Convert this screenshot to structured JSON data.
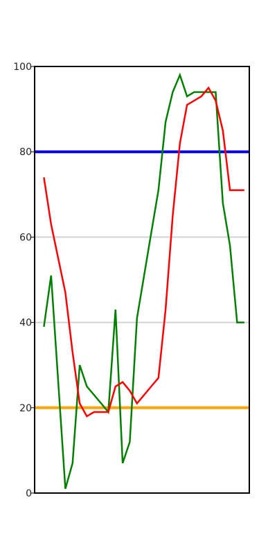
{
  "chart_data": {
    "type": "line",
    "title": "",
    "xlabel": "",
    "ylabel": "",
    "ylim": [
      0,
      100
    ],
    "xlim": [
      0,
      30
    ],
    "y_ticks": [
      0,
      20,
      40,
      60,
      80,
      100
    ],
    "y_tick_labels": [
      "0",
      "20",
      "40",
      "60",
      "80",
      "100"
    ],
    "x_ticks_visible": false,
    "grid": "horizontal",
    "legend": "none",
    "series": [
      {
        "color": "#008000",
        "x": [
          1.3,
          2.3,
          4.3,
          5.3,
          6.3,
          7.3,
          8.3,
          9.3,
          10.3,
          11.3,
          12.3,
          13.3,
          14.3,
          15.3,
          16.3,
          17.3,
          18.3,
          19.3,
          20.3,
          21.3,
          22.3,
          23.3,
          24.3,
          25.3,
          26.3,
          27.3,
          28.3,
          29.3
        ],
        "values": [
          39,
          51,
          1,
          7,
          30,
          25,
          23,
          21,
          19,
          43,
          7,
          12,
          41,
          51,
          61,
          71,
          87,
          94,
          98,
          93,
          94,
          94,
          94,
          94,
          68,
          58,
          40,
          40
        ]
      },
      {
        "color": "#ff0000",
        "x": [
          1.3,
          2.3,
          4.3,
          5.3,
          6.3,
          7.3,
          8.3,
          9.3,
          10.3,
          11.3,
          12.3,
          13.3,
          14.3,
          15.3,
          16.3,
          17.3,
          18.3,
          19.3,
          20.3,
          21.3,
          22.3,
          23.3,
          24.3,
          25.3,
          26.3,
          27.3,
          28.3,
          29.3
        ],
        "values": [
          74,
          63,
          47,
          33,
          21,
          18,
          19,
          19,
          19,
          25,
          26,
          24,
          21,
          23,
          25,
          27,
          43,
          65,
          82,
          91,
          92,
          93,
          95,
          92,
          85,
          71,
          71,
          71
        ]
      }
    ],
    "reference_lines": [
      {
        "y": 80,
        "color": "#0000ff"
      },
      {
        "y": 20,
        "color": "#ffa500"
      }
    ]
  }
}
